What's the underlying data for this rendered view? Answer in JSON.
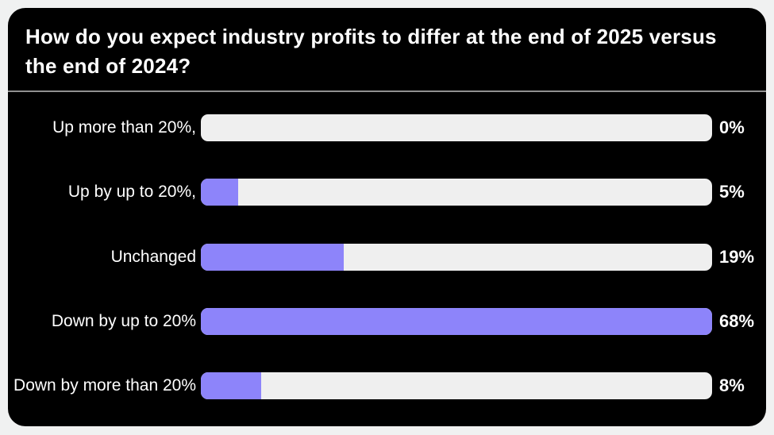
{
  "page": {
    "background": "#f0f1f1"
  },
  "chart_data": {
    "type": "bar",
    "orientation": "horizontal",
    "title": "How do you expect industry profits to differ at the end of 2025 versus the end of 2024?",
    "categories": [
      "Up more than 20%,",
      "Up by up to 20%,",
      "Unchanged",
      "Down by up to 20%",
      "Down by more than 20%"
    ],
    "values": [
      0,
      5,
      19,
      68,
      8
    ],
    "value_labels": [
      "0%",
      "5%",
      "19%",
      "68%",
      "8%"
    ],
    "scale_max": 68,
    "xlim": [
      0,
      68
    ],
    "grid": false,
    "legend": "none",
    "colors": {
      "bar_fill": "#8d84fa",
      "bar_track": "#efefef",
      "card_background": "#000000",
      "page_background": "#f0f1f1",
      "title_text": "#ffffff",
      "label_text": "#ffffff",
      "divider": "#909090"
    }
  }
}
